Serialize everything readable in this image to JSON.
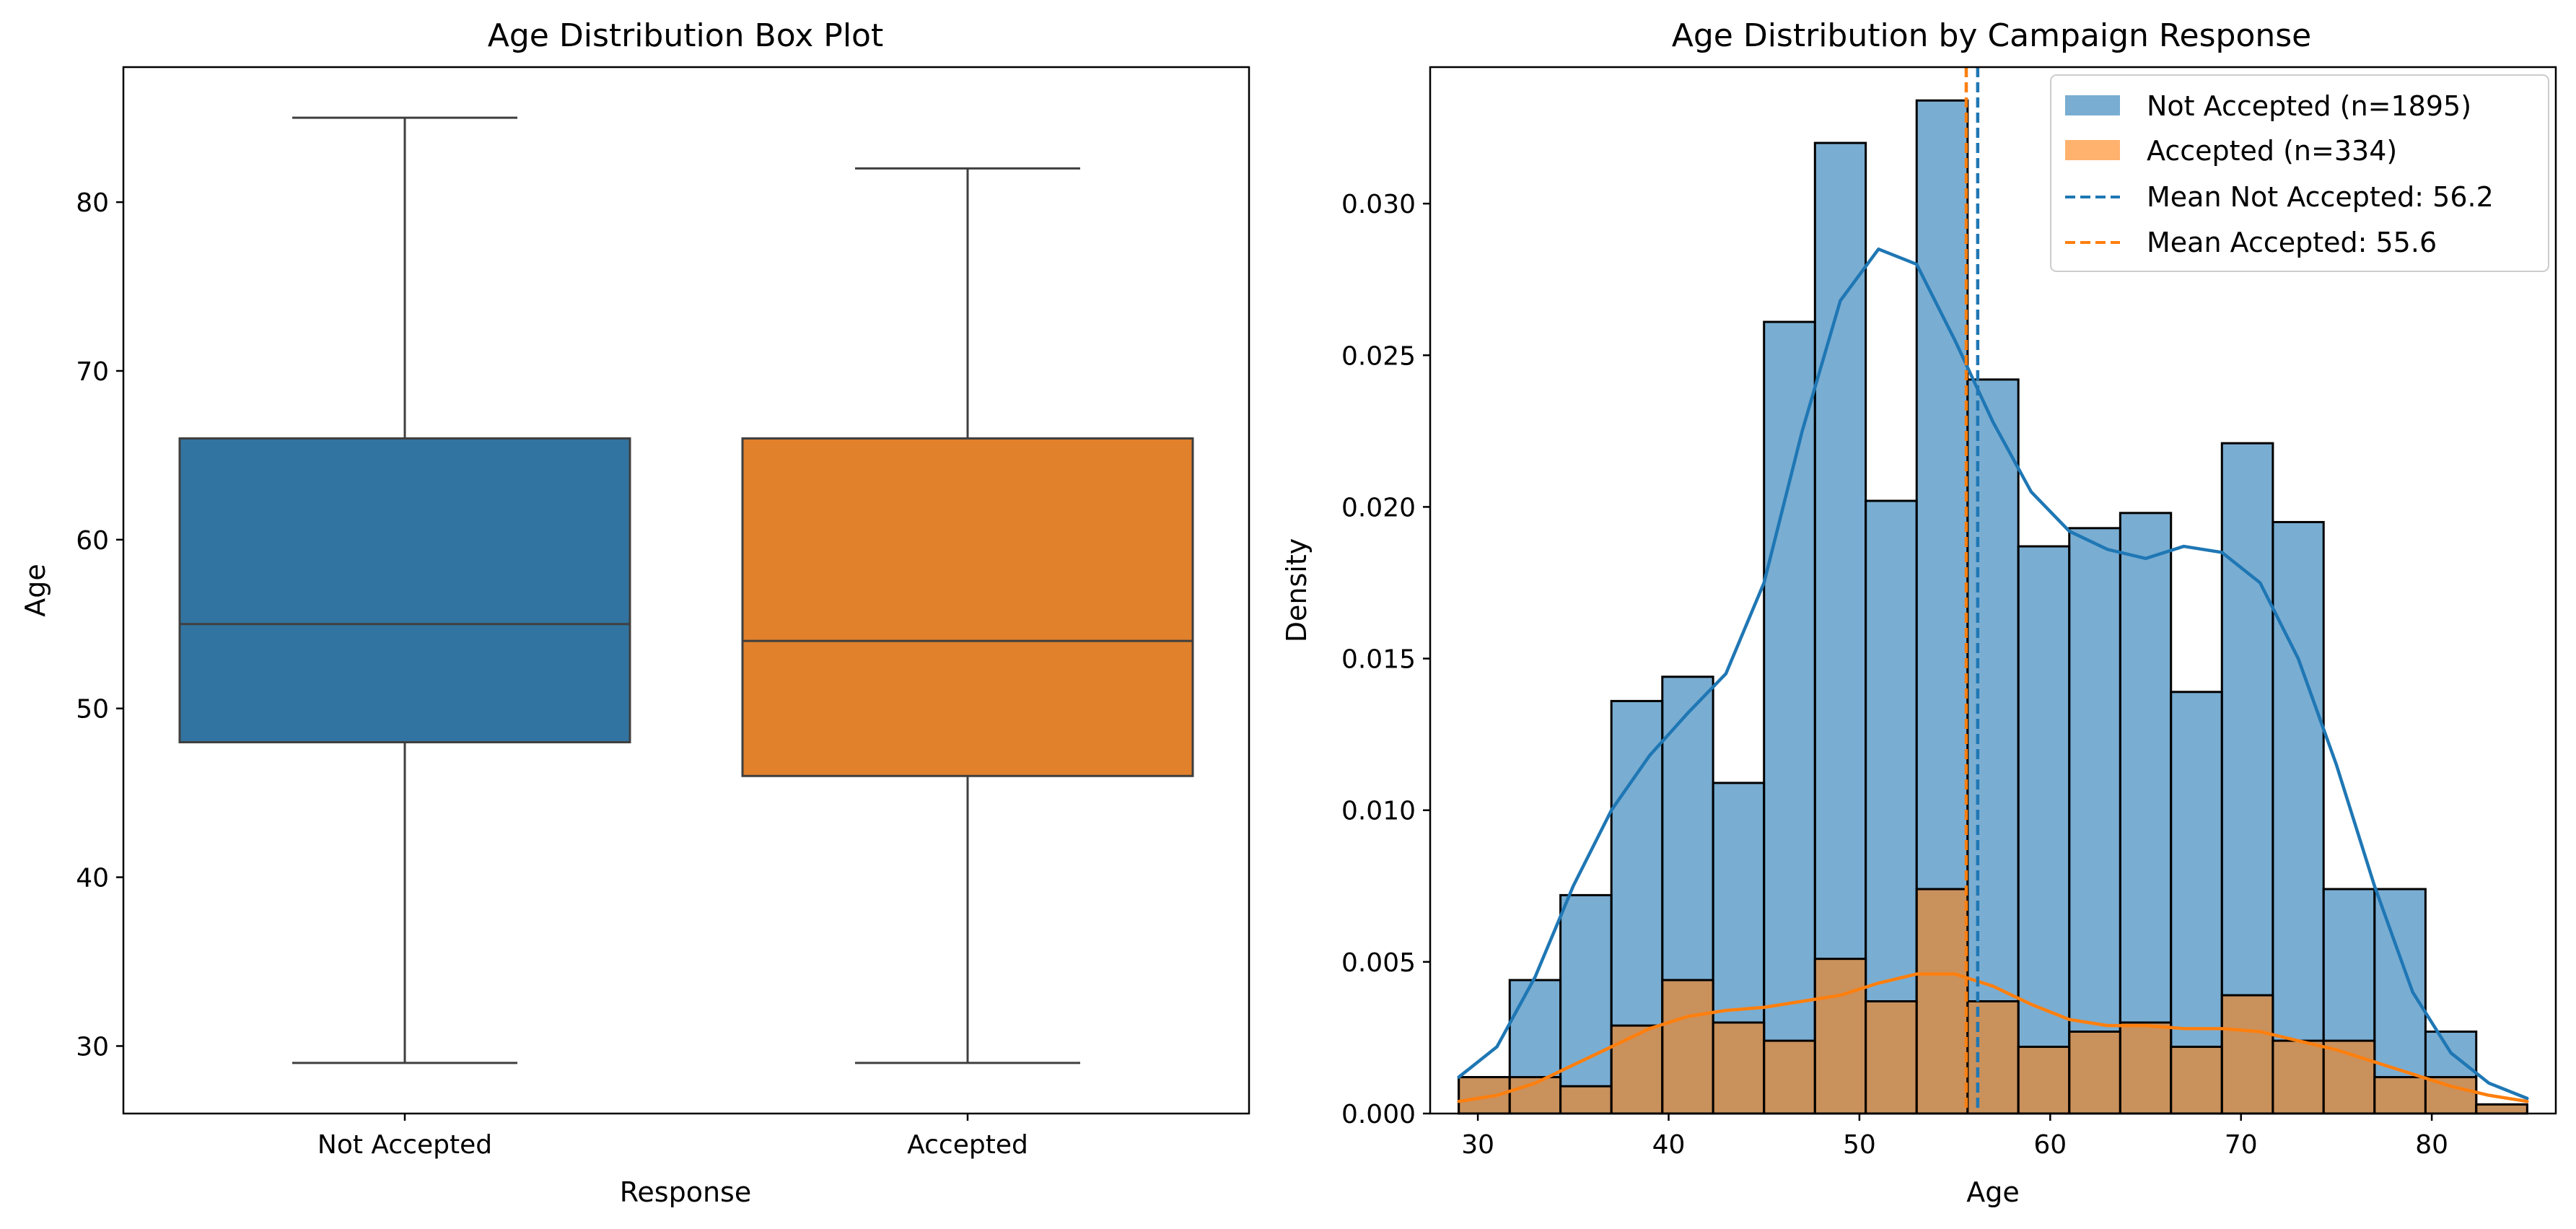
{
  "chart_data": [
    {
      "type": "box",
      "title": "Age Distribution Box Plot",
      "xlabel": "Response",
      "ylabel": "Age",
      "ylim": [
        26,
        88
      ],
      "yticks": [
        30,
        40,
        50,
        60,
        70,
        80
      ],
      "categories": [
        "Not Accepted",
        "Accepted"
      ],
      "boxes": [
        {
          "category": "Not Accepted",
          "min": 29,
          "q1": 48,
          "median": 55,
          "q3": 66,
          "max": 85,
          "color": "#3274a1"
        },
        {
          "category": "Accepted",
          "min": 29,
          "q1": 46,
          "median": 54,
          "q3": 66,
          "max": 82,
          "color": "#e1812c"
        }
      ],
      "grid": false
    },
    {
      "type": "histogram",
      "title": "Age Distribution by Campaign Response",
      "xlabel": "Age",
      "ylabel": "Density",
      "xlim": [
        27.5,
        86.5
      ],
      "ylim": [
        0,
        0.0345
      ],
      "xticks": [
        30,
        40,
        50,
        60,
        70,
        80
      ],
      "yticks": [
        "0.000",
        "0.005",
        "0.010",
        "0.015",
        "0.020",
        "0.025",
        "0.030"
      ],
      "bin_edges": [
        29,
        31.67,
        34.33,
        37,
        39.67,
        42.33,
        45,
        47.67,
        50.33,
        53,
        55.67,
        58.33,
        61,
        63.67,
        66.33,
        69,
        71.67,
        74.33,
        77,
        79.67,
        82.33,
        85
      ],
      "series": [
        {
          "name": "Not Accepted (n=1895)",
          "color": "#1f77b4",
          "density": [
            0.0012,
            0.0044,
            0.0072,
            0.0136,
            0.0144,
            0.0109,
            0.0261,
            0.032,
            0.0202,
            0.0334,
            0.0242,
            0.0187,
            0.0193,
            0.0198,
            0.0139,
            0.0221,
            0.0195,
            0.0074,
            0.0074,
            0.0027,
            0.0003
          ],
          "kde": [
            [
              29,
              0.0012
            ],
            [
              31,
              0.0022
            ],
            [
              33,
              0.0045
            ],
            [
              35,
              0.0075
            ],
            [
              37,
              0.01
            ],
            [
              39,
              0.0118
            ],
            [
              41,
              0.0132
            ],
            [
              43,
              0.0145
            ],
            [
              45,
              0.0175
            ],
            [
              47,
              0.0225
            ],
            [
              49,
              0.0268
            ],
            [
              51,
              0.0285
            ],
            [
              53,
              0.028
            ],
            [
              55,
              0.0255
            ],
            [
              57,
              0.0228
            ],
            [
              59,
              0.0205
            ],
            [
              61,
              0.0192
            ],
            [
              63,
              0.0186
            ],
            [
              65,
              0.0183
            ],
            [
              67,
              0.0187
            ],
            [
              69,
              0.0185
            ],
            [
              71,
              0.0175
            ],
            [
              73,
              0.015
            ],
            [
              75,
              0.0115
            ],
            [
              77,
              0.0075
            ],
            [
              79,
              0.004
            ],
            [
              81,
              0.002
            ],
            [
              83,
              0.001
            ],
            [
              85,
              0.0005
            ]
          ]
        },
        {
          "name": "Accepted (n=334)",
          "color": "#ff7f0e",
          "density": [
            0.0012,
            0.0012,
            0.0009,
            0.0029,
            0.0044,
            0.003,
            0.0024,
            0.0051,
            0.0037,
            0.0074,
            0.0037,
            0.0022,
            0.0027,
            0.003,
            0.0022,
            0.0039,
            0.0024,
            0.0024,
            0.0012,
            0.0012,
            0.0003
          ],
          "kde": [
            [
              29,
              0.0004
            ],
            [
              31,
              0.0006
            ],
            [
              33,
              0.001
            ],
            [
              35,
              0.0016
            ],
            [
              37,
              0.0022
            ],
            [
              39,
              0.0028
            ],
            [
              41,
              0.0032
            ],
            [
              43,
              0.0034
            ],
            [
              45,
              0.0035
            ],
            [
              47,
              0.0037
            ],
            [
              49,
              0.0039
            ],
            [
              51,
              0.0043
            ],
            [
              53,
              0.0046
            ],
            [
              55,
              0.0046
            ],
            [
              57,
              0.0042
            ],
            [
              59,
              0.0036
            ],
            [
              61,
              0.0031
            ],
            [
              63,
              0.0029
            ],
            [
              65,
              0.0029
            ],
            [
              67,
              0.0028
            ],
            [
              69,
              0.0028
            ],
            [
              71,
              0.0027
            ],
            [
              73,
              0.0024
            ],
            [
              75,
              0.0021
            ],
            [
              77,
              0.0017
            ],
            [
              79,
              0.0013
            ],
            [
              81,
              0.0009
            ],
            [
              83,
              0.0006
            ],
            [
              85,
              0.0004
            ]
          ]
        }
      ],
      "mean_lines": [
        {
          "name": "Mean Not Accepted: 56.2",
          "value": 56.2,
          "color": "#1f77b4"
        },
        {
          "name": "Mean Accepted: 55.6",
          "value": 55.6,
          "color": "#ff7f0e"
        }
      ],
      "legend_placement": "top-right",
      "grid": false
    }
  ]
}
